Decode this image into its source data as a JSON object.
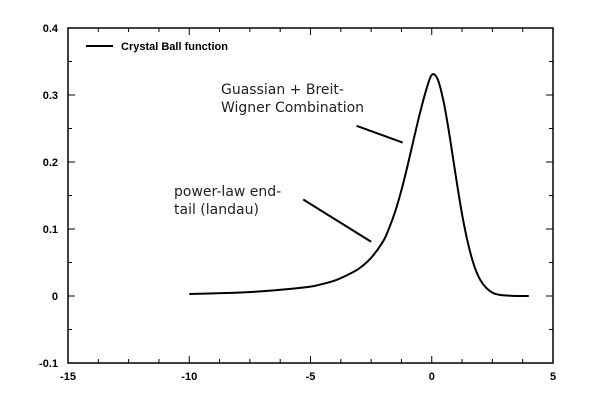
{
  "chart_data": {
    "type": "line",
    "title": "",
    "xlabel": "",
    "ylabel": "",
    "xlim": [
      -15,
      5
    ],
    "ylim": [
      -0.1,
      0.4
    ],
    "x_ticks": [
      -15,
      -10,
      -5,
      0,
      5
    ],
    "y_ticks": [
      -0.1,
      0,
      0.1,
      0.2,
      0.3,
      0.4
    ],
    "x_tick_labels": [
      "-15",
      "-10",
      "-5",
      "0",
      "5"
    ],
    "y_tick_labels": [
      "-0.1",
      "0",
      "0.1",
      "0.2",
      "0.3",
      "0.4"
    ],
    "grid": false,
    "legend_position": "top-left",
    "series": [
      {
        "name": "Crystal Ball function",
        "color": "#000000",
        "x": [
          -10,
          -9,
          -8,
          -7,
          -6,
          -5,
          -4.5,
          -4,
          -3.5,
          -3,
          -2.5,
          -2,
          -1.75,
          -1.5,
          -1.25,
          -1,
          -0.75,
          -0.5,
          -0.25,
          0,
          0.25,
          0.5,
          0.75,
          1,
          1.25,
          1.5,
          1.75,
          2,
          2.25,
          2.5,
          2.75,
          3,
          3.5,
          4
        ],
        "y": [
          0.003,
          0.004,
          0.005,
          0.007,
          0.01,
          0.014,
          0.018,
          0.023,
          0.031,
          0.041,
          0.057,
          0.082,
          0.102,
          0.127,
          0.158,
          0.194,
          0.233,
          0.271,
          0.305,
          0.33,
          0.323,
          0.288,
          0.236,
          0.177,
          0.122,
          0.078,
          0.045,
          0.024,
          0.012,
          0.005,
          0.002,
          0.001,
          0.0,
          0.0
        ]
      }
    ],
    "annotations": [
      {
        "id": "gauss",
        "lines": [
          "Guassian + Breit-",
          "Wigner Combination"
        ],
        "arrow_from": [
          -3.1,
          0.254
        ],
        "arrow_to": [
          -1.2,
          0.229
        ]
      },
      {
        "id": "tail",
        "lines": [
          "power-law end-",
          "tail (landau)"
        ],
        "arrow_from": [
          -5.3,
          0.144
        ],
        "arrow_to": [
          -2.5,
          0.081
        ]
      }
    ]
  }
}
